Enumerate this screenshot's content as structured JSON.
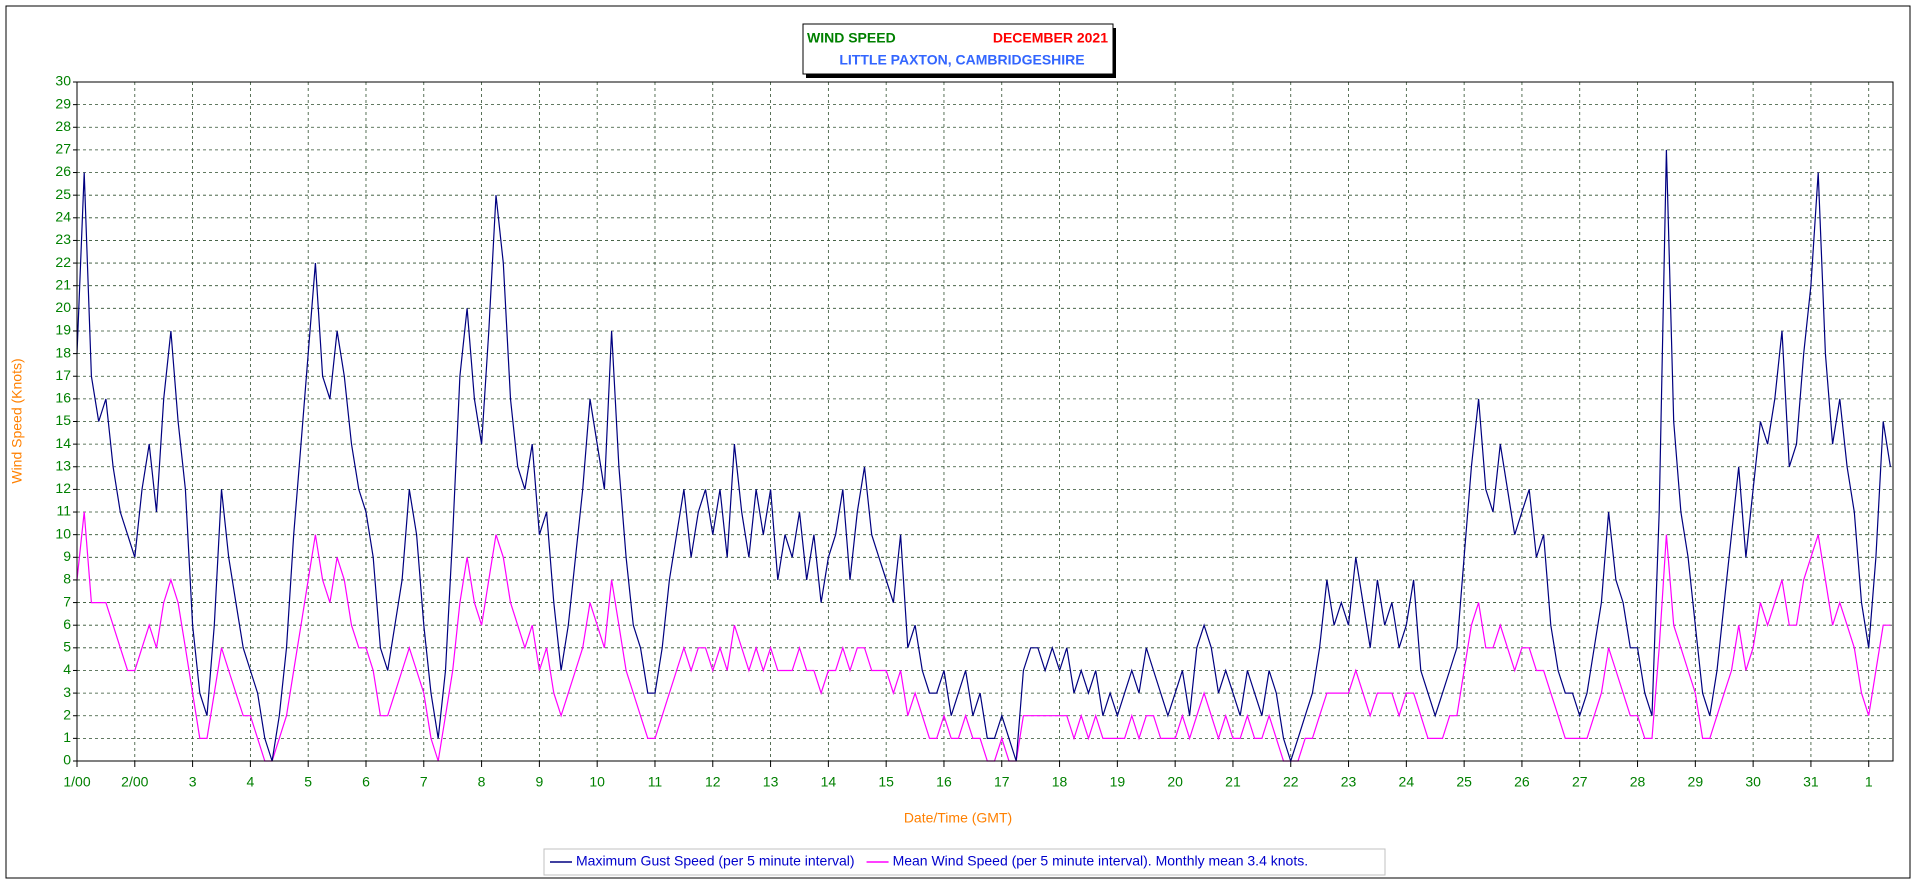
{
  "chart_data": {
    "type": "line",
    "title": "WIND SPEED",
    "period": "DECEMBER 2021",
    "subtitle": "LITTLE PAXTON, CAMBRIDGESHIRE",
    "xlabel": "Date/Time (GMT)",
    "ylabel": "Wind Speed (Knots)",
    "xlim": [
      0,
      31.42
    ],
    "ylim": [
      0,
      30
    ],
    "xticks": [
      {
        "value": 0,
        "label": "1/00"
      },
      {
        "value": 1,
        "label": "2/00"
      },
      {
        "value": 2,
        "label": "3"
      },
      {
        "value": 3,
        "label": "4"
      },
      {
        "value": 4,
        "label": "5"
      },
      {
        "value": 5,
        "label": "6"
      },
      {
        "value": 6,
        "label": "7"
      },
      {
        "value": 7,
        "label": "8"
      },
      {
        "value": 8,
        "label": "9"
      },
      {
        "value": 9,
        "label": "10"
      },
      {
        "value": 10,
        "label": "11"
      },
      {
        "value": 11,
        "label": "12"
      },
      {
        "value": 12,
        "label": "13"
      },
      {
        "value": 13,
        "label": "14"
      },
      {
        "value": 14,
        "label": "15"
      },
      {
        "value": 15,
        "label": "16"
      },
      {
        "value": 16,
        "label": "17"
      },
      {
        "value": 17,
        "label": "18"
      },
      {
        "value": 18,
        "label": "19"
      },
      {
        "value": 19,
        "label": "20"
      },
      {
        "value": 20,
        "label": "21"
      },
      {
        "value": 21,
        "label": "22"
      },
      {
        "value": 22,
        "label": "23"
      },
      {
        "value": 23,
        "label": "24"
      },
      {
        "value": 24,
        "label": "25"
      },
      {
        "value": 25,
        "label": "26"
      },
      {
        "value": 26,
        "label": "27"
      },
      {
        "value": 27,
        "label": "28"
      },
      {
        "value": 28,
        "label": "29"
      },
      {
        "value": 29,
        "label": "30"
      },
      {
        "value": 30,
        "label": "31"
      },
      {
        "value": 31,
        "label": "1"
      }
    ],
    "yticks": [
      0,
      1,
      2,
      3,
      4,
      5,
      6,
      7,
      8,
      9,
      10,
      11,
      12,
      13,
      14,
      15,
      16,
      17,
      18,
      19,
      20,
      21,
      22,
      23,
      24,
      25,
      26,
      27,
      28,
      29,
      30
    ],
    "grid": true,
    "x": [
      0,
      0.125,
      0.25,
      0.375,
      0.5,
      0.625,
      0.75,
      0.875,
      1,
      1.125,
      1.25,
      1.375,
      1.5,
      1.625,
      1.75,
      1.875,
      2,
      2.125,
      2.25,
      2.375,
      2.5,
      2.625,
      2.75,
      2.875,
      3,
      3.125,
      3.25,
      3.375,
      3.5,
      3.625,
      3.75,
      3.875,
      4,
      4.125,
      4.25,
      4.375,
      4.5,
      4.625,
      4.75,
      4.875,
      5,
      5.125,
      5.25,
      5.375,
      5.5,
      5.625,
      5.75,
      5.875,
      6,
      6.125,
      6.25,
      6.375,
      6.5,
      6.625,
      6.75,
      6.875,
      7,
      7.125,
      7.25,
      7.375,
      7.5,
      7.625,
      7.75,
      7.875,
      8,
      8.125,
      8.25,
      8.375,
      8.5,
      8.625,
      8.75,
      8.875,
      9,
      9.125,
      9.25,
      9.375,
      9.5,
      9.625,
      9.75,
      9.875,
      10,
      10.125,
      10.25,
      10.375,
      10.5,
      10.625,
      10.75,
      10.875,
      11,
      11.125,
      11.25,
      11.375,
      11.5,
      11.625,
      11.75,
      11.875,
      12,
      12.125,
      12.25,
      12.375,
      12.5,
      12.625,
      12.75,
      12.875,
      13,
      13.125,
      13.25,
      13.375,
      13.5,
      13.625,
      13.75,
      13.875,
      14,
      14.125,
      14.25,
      14.375,
      14.5,
      14.625,
      14.75,
      14.875,
      15,
      15.125,
      15.25,
      15.375,
      15.5,
      15.625,
      15.75,
      15.875,
      16,
      16.125,
      16.25,
      16.375,
      16.5,
      16.625,
      16.75,
      16.875,
      17,
      17.125,
      17.25,
      17.375,
      17.5,
      17.625,
      17.75,
      17.875,
      18,
      18.125,
      18.25,
      18.375,
      18.5,
      18.625,
      18.75,
      18.875,
      19,
      19.125,
      19.25,
      19.375,
      19.5,
      19.625,
      19.75,
      19.875,
      20,
      20.125,
      20.25,
      20.375,
      20.5,
      20.625,
      20.75,
      20.875,
      21,
      21.125,
      21.25,
      21.375,
      21.5,
      21.625,
      21.75,
      21.875,
      22,
      22.125,
      22.25,
      22.375,
      22.5,
      22.625,
      22.75,
      22.875,
      23,
      23.125,
      23.25,
      23.375,
      23.5,
      23.625,
      23.75,
      23.875,
      24,
      24.125,
      24.25,
      24.375,
      24.5,
      24.625,
      24.75,
      24.875,
      25,
      25.125,
      25.25,
      25.375,
      25.5,
      25.625,
      25.75,
      25.875,
      26,
      26.125,
      26.25,
      26.375,
      26.5,
      26.625,
      26.75,
      26.875,
      27,
      27.125,
      27.25,
      27.375,
      27.5,
      27.625,
      27.75,
      27.875,
      28,
      28.125,
      28.25,
      28.375,
      28.5,
      28.625,
      28.75,
      28.875,
      29,
      29.125,
      29.25,
      29.375,
      29.5,
      29.625,
      29.75,
      29.875,
      30,
      30.125,
      30.25,
      30.375,
      30.5,
      30.625,
      30.75,
      30.875,
      31,
      31.125,
      31.25,
      31.375
    ],
    "series": [
      {
        "name": "Maximum Gust Speed (per 5 minute interval)",
        "color": "#000080",
        "values": [
          18,
          26,
          17,
          15,
          16,
          13,
          11,
          10,
          9,
          12,
          14,
          11,
          16,
          19,
          15,
          12,
          6,
          3,
          2,
          6,
          12,
          9,
          7,
          5,
          4,
          3,
          1,
          0,
          2,
          5,
          10,
          14,
          18,
          22,
          17,
          16,
          19,
          17,
          14,
          12,
          11,
          9,
          5,
          4,
          6,
          8,
          12,
          10,
          6,
          3,
          1,
          4,
          10,
          17,
          20,
          16,
          14,
          19,
          25,
          22,
          16,
          13,
          12,
          14,
          10,
          11,
          7,
          4,
          6,
          9,
          12,
          16,
          14,
          12,
          19,
          13,
          9,
          6,
          5,
          3,
          3,
          5,
          8,
          10,
          12,
          9,
          11,
          12,
          10,
          12,
          9,
          14,
          11,
          9,
          12,
          10,
          12,
          8,
          10,
          9,
          11,
          8,
          10,
          7,
          9,
          10,
          12,
          8,
          11,
          13,
          10,
          9,
          8,
          7,
          10,
          5,
          6,
          4,
          3,
          3,
          4,
          2,
          3,
          4,
          2,
          3,
          1,
          1,
          2,
          1,
          0,
          4,
          5,
          5,
          4,
          5,
          4,
          5,
          3,
          4,
          3,
          4,
          2,
          3,
          2,
          3,
          4,
          3,
          5,
          4,
          3,
          2,
          3,
          4,
          2,
          5,
          6,
          5,
          3,
          4,
          3,
          2,
          4,
          3,
          2,
          4,
          3,
          1,
          0,
          1,
          2,
          3,
          5,
          8,
          6,
          7,
          6,
          9,
          7,
          5,
          8,
          6,
          7,
          5,
          6,
          8,
          4,
          3,
          2,
          3,
          4,
          5,
          9,
          13,
          16,
          12,
          11,
          14,
          12,
          10,
          11,
          12,
          9,
          10,
          6,
          4,
          3,
          3,
          2,
          3,
          5,
          7,
          11,
          8,
          7,
          5,
          5,
          3,
          2,
          11,
          27,
          15,
          11,
          9,
          6,
          3,
          2,
          4,
          7,
          10,
          13,
          9,
          12,
          15,
          14,
          16,
          19,
          13,
          14,
          18,
          21,
          26,
          18,
          14,
          16,
          13,
          11,
          7,
          5,
          9,
          15,
          13
        ]
      },
      {
        "name": "Mean Wind Speed (per 5 minute interval). Monthly mean 3.4 knots.",
        "color": "#ff00ff",
        "values": [
          8,
          11,
          7,
          7,
          7,
          6,
          5,
          4,
          4,
          5,
          6,
          5,
          7,
          8,
          7,
          5,
          3,
          1,
          1,
          3,
          5,
          4,
          3,
          2,
          2,
          1,
          0,
          0,
          1,
          2,
          4,
          6,
          8,
          10,
          8,
          7,
          9,
          8,
          6,
          5,
          5,
          4,
          2,
          2,
          3,
          4,
          5,
          4,
          3,
          1,
          0,
          2,
          4,
          7,
          9,
          7,
          6,
          8,
          10,
          9,
          7,
          6,
          5,
          6,
          4,
          5,
          3,
          2,
          3,
          4,
          5,
          7,
          6,
          5,
          8,
          6,
          4,
          3,
          2,
          1,
          1,
          2,
          3,
          4,
          5,
          4,
          5,
          5,
          4,
          5,
          4,
          6,
          5,
          4,
          5,
          4,
          5,
          4,
          4,
          4,
          5,
          4,
          4,
          3,
          4,
          4,
          5,
          4,
          5,
          5,
          4,
          4,
          4,
          3,
          4,
          2,
          3,
          2,
          1,
          1,
          2,
          1,
          1,
          2,
          1,
          1,
          0,
          0,
          1,
          0,
          0,
          2,
          2,
          2,
          2,
          2,
          2,
          2,
          1,
          2,
          1,
          2,
          1,
          1,
          1,
          1,
          2,
          1,
          2,
          2,
          1,
          1,
          1,
          2,
          1,
          2,
          3,
          2,
          1,
          2,
          1,
          1,
          2,
          1,
          1,
          2,
          1,
          0,
          0,
          0,
          1,
          1,
          2,
          3,
          3,
          3,
          3,
          4,
          3,
          2,
          3,
          3,
          3,
          2,
          3,
          3,
          2,
          1,
          1,
          1,
          2,
          2,
          4,
          6,
          7,
          5,
          5,
          6,
          5,
          4,
          5,
          5,
          4,
          4,
          3,
          2,
          1,
          1,
          1,
          1,
          2,
          3,
          5,
          4,
          3,
          2,
          2,
          1,
          1,
          5,
          10,
          6,
          5,
          4,
          3,
          1,
          1,
          2,
          3,
          4,
          6,
          4,
          5,
          7,
          6,
          7,
          8,
          6,
          6,
          8,
          9,
          10,
          8,
          6,
          7,
          6,
          5,
          3,
          2,
          4,
          6,
          6
        ]
      }
    ]
  }
}
